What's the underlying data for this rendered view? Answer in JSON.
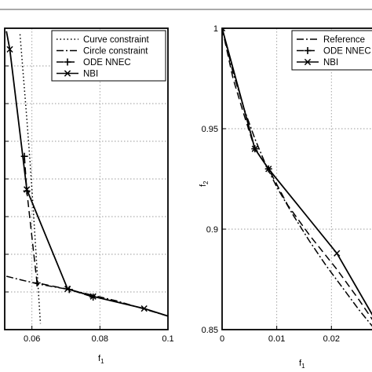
{
  "chart_data": [
    {
      "type": "line",
      "xlabel": "f1",
      "ylabel": "",
      "xlim": [
        0.052,
        0.1
      ],
      "ylim": [
        0.0,
        1.0
      ],
      "xticks": [
        "0.06",
        "0.08",
        "0.1"
      ],
      "xtick_values": [
        0.06,
        0.08,
        0.1
      ],
      "yticks": [
        0.0,
        0.125,
        0.25,
        0.375,
        0.5,
        0.625,
        0.75,
        0.875,
        1.0
      ],
      "grid": true,
      "legend_position": "top-right",
      "series": [
        {
          "name": "Curve constraint",
          "style": "dotted",
          "x": [
            0.0565,
            0.0575,
            0.0585,
            0.0595,
            0.0605,
            0.0615,
            0.0625
          ],
          "y": [
            0.98,
            0.84,
            0.7,
            0.55,
            0.38,
            0.2,
            0.02
          ]
        },
        {
          "name": "Circle constraint",
          "style": "dashdot",
          "x": [
            0.0525,
            0.055,
            0.0575,
            0.06,
            0.0615,
            0.07,
            0.085,
            0.1
          ],
          "y": [
            0.177,
            0.17,
            0.163,
            0.157,
            0.152,
            0.135,
            0.095,
            0.045
          ]
        },
        {
          "name": "ODE NNEC",
          "style": "dashed",
          "marker": "plus",
          "x": [
            0.0578,
            0.0585,
            0.0615,
            0.071,
            0.078
          ],
          "y": [
            0.575,
            0.46,
            0.155,
            0.133,
            0.108
          ]
        },
        {
          "name": "NBI",
          "style": "solid",
          "marker": "x",
          "x": [
            0.0525,
            0.0535,
            0.0585,
            0.0705,
            0.078,
            0.093,
            0.1
          ],
          "y": [
            0.99,
            0.93,
            0.465,
            0.135,
            0.11,
            0.07,
            0.045
          ],
          "marker_indices": [
            1,
            2,
            3,
            4,
            5
          ]
        }
      ]
    },
    {
      "type": "line",
      "xlabel": "f1",
      "ylabel": "f2",
      "xlim": [
        0,
        0.028
      ],
      "ylim": [
        0.85,
        1.0
      ],
      "xticks": [
        "0",
        "0.01",
        "0.02"
      ],
      "xtick_values": [
        0,
        0.01,
        0.02
      ],
      "yticks": [
        "0.85",
        "0.9",
        "0.95",
        "1"
      ],
      "ytick_values": [
        0.85,
        0.9,
        0.95,
        1.0
      ],
      "grid": true,
      "legend_position": "top-right",
      "series": [
        {
          "name": "Reference",
          "style": "dashdot",
          "x": [
            0,
            0.002,
            0.004,
            0.006,
            0.008,
            0.01,
            0.013,
            0.016,
            0.019,
            0.022,
            0.025,
            0.028
          ],
          "y": [
            1.0,
            0.978,
            0.96,
            0.945,
            0.932,
            0.921,
            0.907,
            0.894,
            0.882,
            0.871,
            0.86,
            0.85
          ]
        },
        {
          "name": "ODE NNEC",
          "style": "dashed",
          "marker": "plus",
          "x": [
            0,
            0.002,
            0.004,
            0.006,
            0.0085,
            0.012,
            0.016,
            0.021,
            0.025,
            0.028
          ],
          "y": [
            1.0,
            0.975,
            0.957,
            0.94,
            0.93,
            0.912,
            0.897,
            0.88,
            0.865,
            0.853
          ],
          "marker_indices": [
            0,
            3,
            4
          ]
        },
        {
          "name": "NBI",
          "style": "solid",
          "marker": "x",
          "x": [
            0,
            0.006,
            0.0085,
            0.021,
            0.028
          ],
          "y": [
            1.0,
            0.94,
            0.93,
            0.888,
            0.855
          ],
          "marker_indices": [
            0,
            1,
            2,
            3
          ]
        }
      ]
    }
  ],
  "labels": {
    "left_xlabel": "f",
    "left_xlabel_sub": "1",
    "right_xlabel": "f",
    "right_xlabel_sub": "1",
    "right_ylabel": "f",
    "right_ylabel_sub": "2",
    "left_legend": [
      "Curve constraint",
      "Circle constraint",
      "ODE NNEC",
      "NBI"
    ],
    "right_legend": [
      "Reference",
      "ODE NNEC",
      "NBI"
    ]
  }
}
